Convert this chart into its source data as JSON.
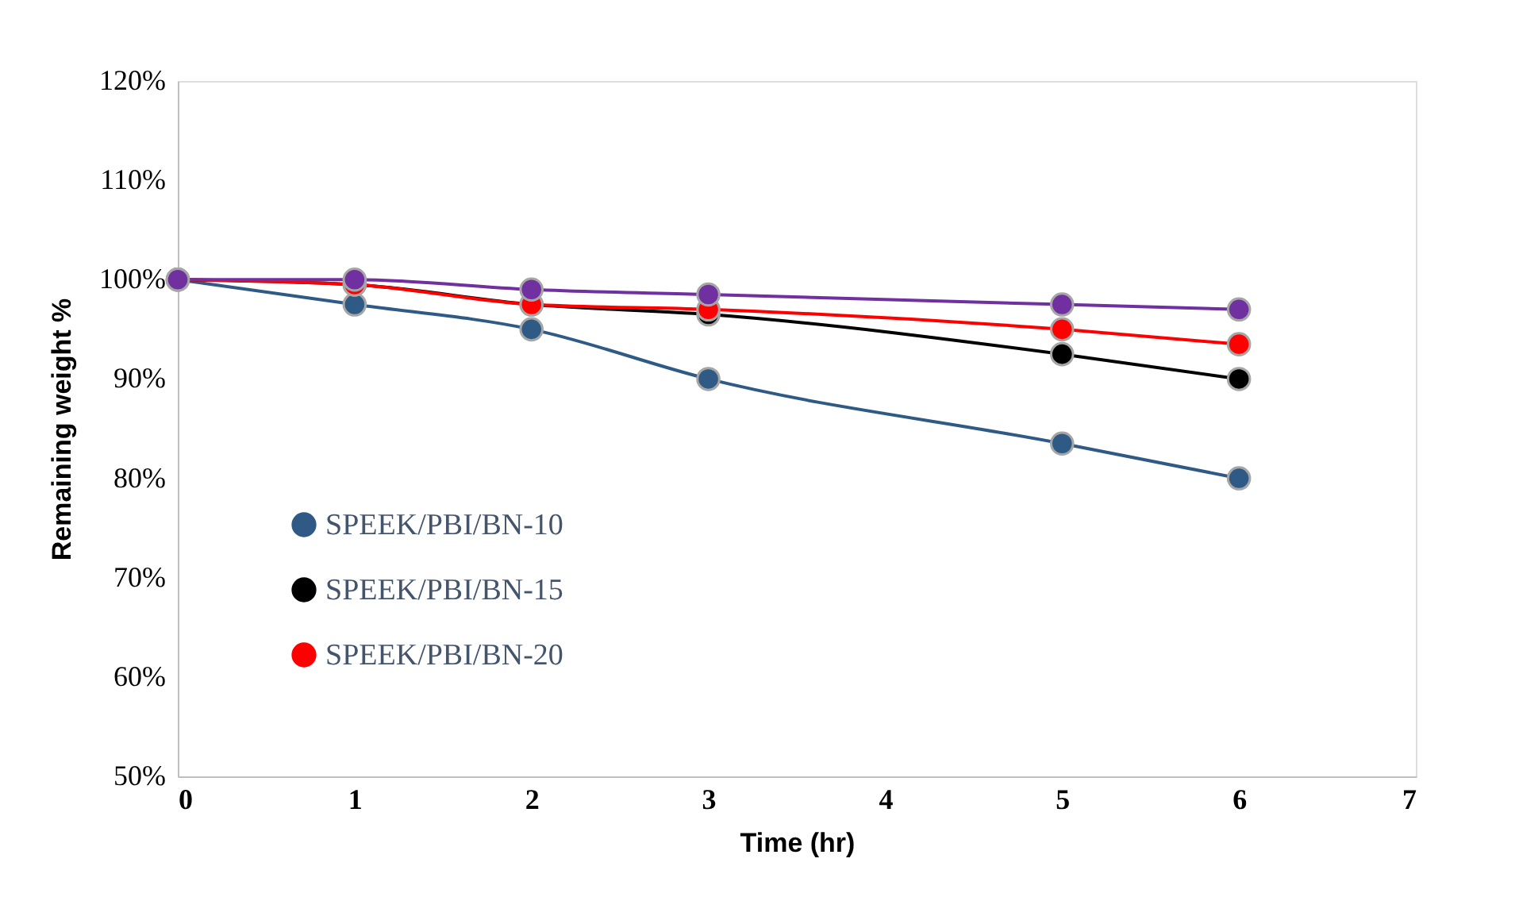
{
  "chart_data": {
    "type": "line",
    "xlabel": "Time (hr)",
    "ylabel": "Remaining weight %",
    "x": [
      0,
      1,
      2,
      3,
      5,
      6
    ],
    "series": [
      {
        "name": "SPEEK/PBI/BN-10",
        "color": "#2e5a85",
        "values": [
          100,
          97.5,
          95,
          90,
          83.5,
          80
        ]
      },
      {
        "name": "SPEEK/PBI/BN-15",
        "color": "#000000",
        "values": [
          100,
          99.5,
          97.5,
          96.5,
          92.5,
          90
        ]
      },
      {
        "name": "SPEEK/PBI/BN-20",
        "color": "#ff0000",
        "values": [
          100,
          99.5,
          97.5,
          97,
          95,
          93.5
        ]
      },
      {
        "color": "#7030a0",
        "values": [
          100,
          100,
          99,
          98.5,
          97.5,
          97
        ]
      }
    ],
    "xlim": [
      0,
      7
    ],
    "xticks": [
      0,
      1,
      2,
      3,
      4,
      5,
      6,
      7
    ],
    "ylim": [
      50,
      120
    ],
    "yticks": [
      {
        "value": 50,
        "label": "50%"
      },
      {
        "value": 60,
        "label": "60%"
      },
      {
        "value": 70,
        "label": "70%"
      },
      {
        "value": 80,
        "label": "80%"
      },
      {
        "value": 90,
        "label": "90%"
      },
      {
        "value": 100,
        "label": "100%"
      },
      {
        "value": 110,
        "label": "110%"
      },
      {
        "value": 120,
        "label": "120%"
      }
    ],
    "grid": false,
    "legend": "bottom left",
    "marker": "circle",
    "line_style": "solid"
  }
}
